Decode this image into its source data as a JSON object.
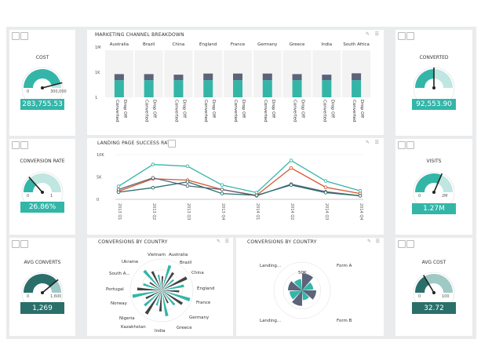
{
  "colors": {
    "teal": "#33b6a8",
    "dark": "#2a6f6a",
    "slate": "#5b6479",
    "orange": "#d9552b",
    "light": "#9ad9d0"
  },
  "gauges": [
    {
      "id": "cost",
      "title": "COST",
      "value": "283,755.53",
      "min": "0",
      "max": "300,000",
      "level": 0.92
    },
    {
      "id": "conversion-rate",
      "title": "CONVERSION RATE",
      "value": "26.86%",
      "min": "0",
      "max": "1",
      "level": 0.27
    },
    {
      "id": "avg-converts",
      "title": "AVG CONVERTS",
      "value": "1,269",
      "min": "0",
      "max": "1,600",
      "level": 0.78
    },
    {
      "id": "converted",
      "title": "CONVERTED",
      "value": "92,553.90",
      "min": "",
      "max": "",
      "level": 0.5
    },
    {
      "id": "visits",
      "title": "VISITS",
      "value": "1.27M",
      "min": "0",
      "max": "2M",
      "level": 0.63
    },
    {
      "id": "avg-cost",
      "title": "AVG COST",
      "value": "32.72",
      "min": "0",
      "max": "100",
      "level": 0.33
    }
  ],
  "marketing": {
    "title": "MARKETING CHANNEL BREAKDOWN",
    "chart_data": {
      "type": "bar",
      "categories": [
        "Australia",
        "Brazil",
        "China",
        "England",
        "France",
        "Germany",
        "Greece",
        "India",
        "South Africa"
      ],
      "stack_labels": [
        "Converted",
        "Drop Off"
      ],
      "yticks": [
        "1",
        "1K",
        "1M"
      ],
      "converted": [
        0.62,
        0.62,
        0.62,
        0.62,
        0.62,
        0.62,
        0.62,
        0.62,
        0.62
      ],
      "dropoff": [
        0.22,
        0.22,
        0.2,
        0.24,
        0.24,
        0.24,
        0.22,
        0.2,
        0.25
      ]
    }
  },
  "landing": {
    "title": "LANDING PAGE SUCCESS RATE",
    "chart_data": {
      "type": "line",
      "x": [
        "2013 Q1",
        "2013 Q2",
        "2013 Q3",
        "2013 Q4",
        "2014 Q1",
        "2014 Q2",
        "2014 Q3",
        "2014 Q4"
      ],
      "yticks": [
        "0",
        "5K",
        "10K"
      ],
      "ylim": [
        0,
        10000
      ],
      "series": [
        {
          "color": "#33b6a8",
          "values": [
            2900,
            7800,
            7400,
            3200,
            1500,
            8700,
            4100,
            1900
          ]
        },
        {
          "color": "#d9552b",
          "values": [
            1800,
            4600,
            4300,
            2200,
            900,
            7000,
            2700,
            1300
          ]
        },
        {
          "color": "#5b6479",
          "values": [
            2200,
            4800,
            3000,
            2200,
            800,
            3400,
            1700,
            800
          ]
        },
        {
          "color": "#2a6f6a",
          "values": [
            1600,
            2600,
            3900,
            1300,
            900,
            3200,
            1500,
            800
          ]
        }
      ]
    }
  },
  "country1": {
    "title": "CONVERSIONS BY COUNTRY",
    "labels": [
      "Vietnam",
      "Australia",
      "Brazil",
      "China",
      "England",
      "France",
      "Germany",
      "Greece",
      "India",
      "Kazakhstan",
      "Nigeria",
      "Norway",
      "Portugal",
      "South A...",
      "Ukraine"
    ]
  },
  "country2": {
    "title": "CONVERSIONS BY COUNTRY",
    "labels": [
      "Landing...",
      "Form A",
      "Landing...",
      "Form B"
    ],
    "center": "50K"
  }
}
